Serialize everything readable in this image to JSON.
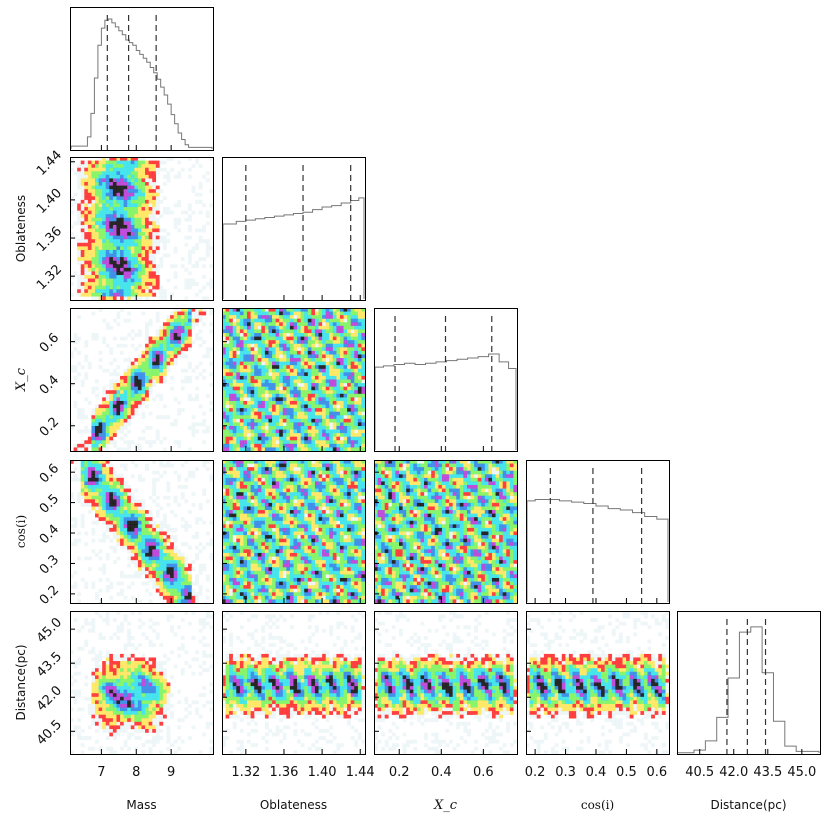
{
  "chart_data": {
    "type": "corner",
    "parameters": [
      {
        "id": "mass",
        "label": "Mass",
        "range": [
          6.1,
          10.2
        ],
        "ticks": [
          7,
          8,
          9
        ],
        "tick_labels": [
          "7",
          "8",
          "9"
        ]
      },
      {
        "id": "oblateness",
        "label": "Oblateness",
        "range": [
          1.295,
          1.445
        ],
        "ticks": [
          1.32,
          1.36,
          1.4,
          1.44
        ],
        "tick_labels": [
          "1.32",
          "1.36",
          "1.40",
          "1.44"
        ]
      },
      {
        "id": "xc",
        "label": "X_c",
        "range": [
          0.08,
          0.76
        ],
        "ticks": [
          0.2,
          0.4,
          0.6
        ],
        "tick_labels": [
          "0.2",
          "0.4",
          "0.6"
        ]
      },
      {
        "id": "cosi",
        "label": "cos(i)",
        "range": [
          0.17,
          0.64
        ],
        "ticks": [
          0.2,
          0.3,
          0.4,
          0.5,
          0.6
        ],
        "tick_labels": [
          "0.2",
          "0.3",
          "0.4",
          "0.5",
          "0.6"
        ]
      },
      {
        "id": "distance",
        "label": "Distance(pc)",
        "range": [
          39.5,
          45.8
        ],
        "ticks": [
          40.5,
          42.0,
          43.5,
          45.0
        ],
        "tick_labels": [
          "40.5",
          "42.0",
          "43.5",
          "45.0"
        ]
      }
    ],
    "quantiles": {
      "mass": [
        7.17,
        7.78,
        8.57
      ],
      "oblateness": [
        1.32,
        1.38,
        1.43
      ],
      "xc": [
        0.18,
        0.42,
        0.64
      ],
      "cosi": [
        0.25,
        0.39,
        0.55
      ],
      "distance": [
        41.7,
        42.6,
        43.4
      ]
    },
    "marginals": {
      "mass": {
        "x": [
          6.55,
          6.65,
          6.75,
          6.85,
          6.95,
          7.05,
          7.15,
          7.25,
          7.35,
          7.45,
          7.55,
          7.65,
          7.75,
          7.85,
          7.95,
          8.05,
          8.15,
          8.25,
          8.35,
          8.45,
          8.55,
          8.65,
          8.75,
          8.85,
          8.95,
          9.05,
          9.15,
          9.25,
          9.35,
          9.45,
          9.55
        ],
        "y": [
          0.03,
          0.1,
          0.28,
          0.55,
          0.8,
          0.93,
          0.99,
          1.0,
          0.97,
          0.94,
          0.91,
          0.88,
          0.84,
          0.82,
          0.8,
          0.76,
          0.73,
          0.7,
          0.67,
          0.63,
          0.59,
          0.54,
          0.48,
          0.42,
          0.35,
          0.27,
          0.2,
          0.13,
          0.08,
          0.04,
          0.02
        ]
      },
      "oblateness": {
        "x": [
          1.305,
          1.315,
          1.325,
          1.335,
          1.345,
          1.355,
          1.365,
          1.375,
          1.385,
          1.395,
          1.405,
          1.415,
          1.425,
          1.435,
          1.442
        ],
        "y": [
          0.58,
          0.6,
          0.61,
          0.62,
          0.63,
          0.64,
          0.65,
          0.66,
          0.67,
          0.69,
          0.71,
          0.72,
          0.74,
          0.76,
          0.78
        ]
      },
      "xc": {
        "x": [
          0.1,
          0.15,
          0.2,
          0.25,
          0.3,
          0.35,
          0.4,
          0.45,
          0.5,
          0.55,
          0.6,
          0.65,
          0.7,
          0.74
        ],
        "y": [
          0.64,
          0.65,
          0.66,
          0.67,
          0.66,
          0.67,
          0.68,
          0.69,
          0.7,
          0.71,
          0.72,
          0.74,
          0.68,
          0.63
        ]
      },
      "cosi": {
        "x": [
          0.18,
          0.22,
          0.26,
          0.3,
          0.34,
          0.38,
          0.42,
          0.46,
          0.5,
          0.54,
          0.58,
          0.62
        ],
        "y": [
          0.78,
          0.79,
          0.79,
          0.78,
          0.77,
          0.76,
          0.74,
          0.72,
          0.71,
          0.69,
          0.66,
          0.64
        ]
      },
      "distance": {
        "x": [
          40.0,
          40.5,
          41.0,
          41.5,
          42.0,
          42.5,
          43.0,
          43.5,
          44.0,
          44.5,
          45.0
        ],
        "y": [
          0.01,
          0.03,
          0.1,
          0.28,
          0.58,
          0.93,
          0.97,
          0.62,
          0.25,
          0.06,
          0.02
        ]
      }
    },
    "histogram_color": "#777777",
    "quantile_line_color": "#333333",
    "density_colors": [
      "#e5f1f4",
      "#ff2b2b",
      "#ffe65a",
      "#7df35c",
      "#34e2ea",
      "#2f86e8",
      "#b93bd6",
      "#111111"
    ],
    "grid": false,
    "legend": "none"
  }
}
